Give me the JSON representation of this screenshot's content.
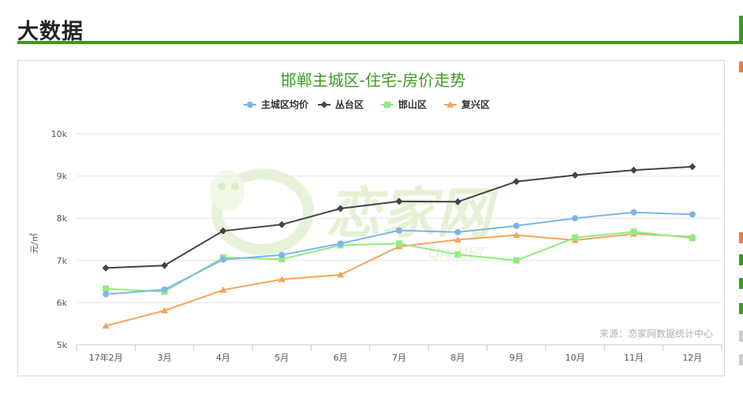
{
  "page": {
    "title": "大数据"
  },
  "chart_data": {
    "type": "line",
    "title": "邯郸主城区-住宅-房价走势",
    "ylabel": "元/㎡",
    "xlabel": "",
    "categories": [
      "17年2月",
      "3月",
      "4月",
      "5月",
      "6月",
      "7月",
      "8月",
      "9月",
      "10月",
      "11月",
      "12月"
    ],
    "y_ticks": [
      "5k",
      "6k",
      "7k",
      "8k",
      "9k",
      "10k"
    ],
    "ylim": [
      5000,
      10000
    ],
    "grid": "horizontal",
    "legend_position": "top-center",
    "series": [
      {
        "name": "主城区均价",
        "color": "#7cb5ec",
        "marker": "circle",
        "values": [
          6200,
          6310,
          7020,
          7130,
          7400,
          7710,
          7670,
          7820,
          8000,
          8140,
          8090
        ]
      },
      {
        "name": "丛台区",
        "color": "#434348",
        "marker": "diamond",
        "values": [
          6820,
          6880,
          7700,
          7850,
          8230,
          8400,
          8390,
          8870,
          9020,
          9140,
          9220
        ]
      },
      {
        "name": "邯山区",
        "color": "#90ed7d",
        "marker": "square",
        "values": [
          6330,
          6260,
          7070,
          7030,
          7360,
          7400,
          7140,
          7000,
          7540,
          7680,
          7530
        ]
      },
      {
        "name": "复兴区",
        "color": "#f7a35c",
        "marker": "triangle",
        "values": [
          5450,
          5810,
          6300,
          6550,
          6660,
          7330,
          7490,
          7600,
          7480,
          7630,
          7560
        ]
      }
    ],
    "source_note": "来源：恋家网数据统计中心",
    "watermark": {
      "text": "恋家网",
      "subtext": "LJia.NET",
      "color": "#c9e6a8"
    }
  },
  "colors": {
    "accent": "#3a9a1c",
    "title": "#3d9a25",
    "axis_text": "#555555",
    "grid": "#e6e6e6"
  }
}
